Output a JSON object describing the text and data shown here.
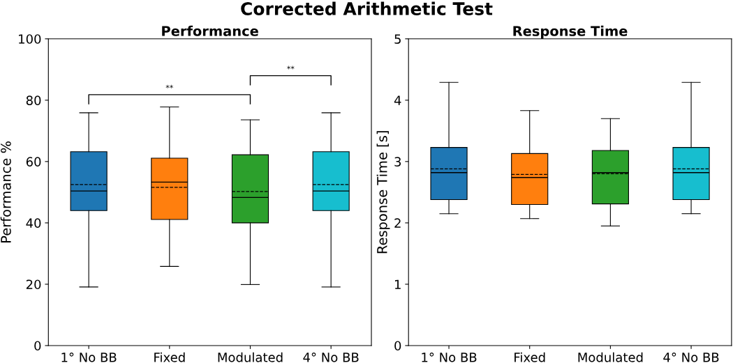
{
  "chart_data": [
    {
      "type": "other",
      "title": "Corrected Arithmetic Test"
    },
    {
      "type": "box",
      "title": "Performance",
      "ylabel": "Performance %",
      "categories": [
        "1° No BB",
        "Fixed",
        "Modulated",
        "4° No BB"
      ],
      "colors": [
        "#1f77b4",
        "#ff7f0e",
        "#2ca02c",
        "#17becf"
      ],
      "ylim": [
        0,
        100
      ],
      "yticks": [
        0,
        20,
        40,
        60,
        80,
        100
      ],
      "grid": false,
      "annotations": [
        "**",
        "**"
      ],
      "boxes": [
        {
          "low": 19.1,
          "q1": 44.0,
          "median": 50.4,
          "q3": 63.2,
          "high": 75.9,
          "mean": 52.5
        },
        {
          "low": 25.8,
          "q1": 41.1,
          "median": 53.3,
          "q3": 61.1,
          "high": 77.8,
          "mean": 51.6
        },
        {
          "low": 19.9,
          "q1": 40.0,
          "median": 48.3,
          "q3": 62.2,
          "high": 73.6,
          "mean": 50.2
        },
        {
          "low": 19.1,
          "q1": 44.0,
          "median": 50.4,
          "q3": 63.2,
          "high": 75.9,
          "mean": 52.5
        }
      ]
    },
    {
      "type": "box",
      "title": "Response Time",
      "ylabel": "Response Time [s]",
      "categories": [
        "1° No BB",
        "Fixed",
        "Modulated",
        "4° No BB"
      ],
      "colors": [
        "#1f77b4",
        "#ff7f0e",
        "#2ca02c",
        "#17becf"
      ],
      "ylim": [
        0,
        5
      ],
      "yticks": [
        0,
        1,
        2,
        3,
        4,
        5
      ],
      "grid": false,
      "boxes": [
        {
          "low": 2.15,
          "q1": 2.38,
          "median": 2.82,
          "q3": 3.23,
          "high": 4.29,
          "mean": 2.88
        },
        {
          "low": 2.07,
          "q1": 2.3,
          "median": 2.74,
          "q3": 3.13,
          "high": 3.83,
          "mean": 2.79
        },
        {
          "low": 1.95,
          "q1": 2.31,
          "median": 2.82,
          "q3": 3.18,
          "high": 3.7,
          "mean": 2.8
        },
        {
          "low": 2.15,
          "q1": 2.38,
          "median": 2.82,
          "q3": 3.23,
          "high": 4.29,
          "mean": 2.88
        }
      ]
    }
  ]
}
